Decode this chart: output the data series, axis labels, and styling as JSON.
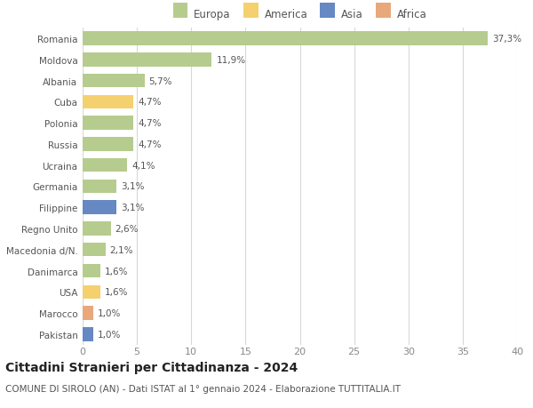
{
  "categories": [
    "Romania",
    "Moldova",
    "Albania",
    "Cuba",
    "Polonia",
    "Russia",
    "Ucraina",
    "Germania",
    "Filippine",
    "Regno Unito",
    "Macedonia d/N.",
    "Danimarca",
    "USA",
    "Marocco",
    "Pakistan"
  ],
  "values": [
    37.3,
    11.9,
    5.7,
    4.7,
    4.7,
    4.7,
    4.1,
    3.1,
    3.1,
    2.6,
    2.1,
    1.6,
    1.6,
    1.0,
    1.0
  ],
  "labels": [
    "37,3%",
    "11,9%",
    "5,7%",
    "4,7%",
    "4,7%",
    "4,7%",
    "4,1%",
    "3,1%",
    "3,1%",
    "2,6%",
    "2,1%",
    "1,6%",
    "1,6%",
    "1,0%",
    "1,0%"
  ],
  "continents": [
    "Europa",
    "Europa",
    "Europa",
    "America",
    "Europa",
    "Europa",
    "Europa",
    "Europa",
    "Asia",
    "Europa",
    "Europa",
    "Europa",
    "America",
    "Africa",
    "Asia"
  ],
  "colors": {
    "Europa": "#b5cc8e",
    "America": "#f5d06e",
    "Asia": "#6688c3",
    "Africa": "#e8a87c"
  },
  "legend_order": [
    "Europa",
    "America",
    "Asia",
    "Africa"
  ],
  "xlim": [
    0,
    40
  ],
  "xticks": [
    0,
    5,
    10,
    15,
    20,
    25,
    30,
    35,
    40
  ],
  "title": "Cittadini Stranieri per Cittadinanza - 2024",
  "subtitle": "COMUNE DI SIROLO (AN) - Dati ISTAT al 1° gennaio 2024 - Elaborazione TUTTITALIA.IT",
  "background_color": "#ffffff",
  "grid_color": "#d8d8d8",
  "bar_height": 0.65,
  "label_fontsize": 7.5,
  "ytick_fontsize": 7.5,
  "xtick_fontsize": 8,
  "title_fontsize": 10,
  "subtitle_fontsize": 7.5
}
